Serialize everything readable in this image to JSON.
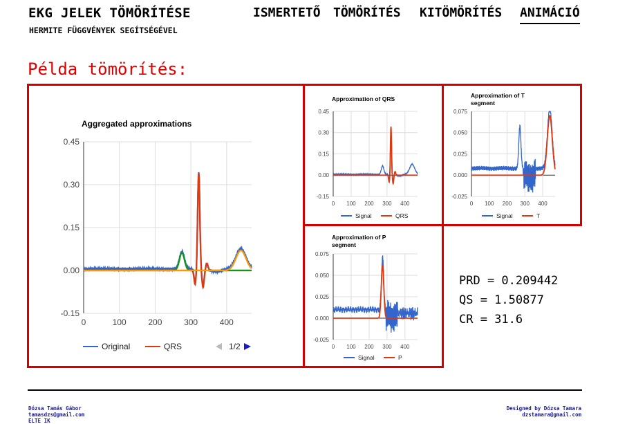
{
  "header": {
    "title": "EKG JELEK TÖMÖRÍTÉSE",
    "subtitle": "HERMITE FÜGGVÉNYEK SEGÍTSÉGÉVEL",
    "nav": [
      {
        "label": "ISMERTETŐ",
        "active": false
      },
      {
        "label": "TÖMÖRÍTÉS",
        "active": false
      },
      {
        "label": "KITÖMÖRÍTÉS",
        "active": false
      },
      {
        "label": "ANIMÁCIÓ",
        "active": true
      }
    ]
  },
  "section_title": "Példa tömörítés:",
  "stats": {
    "prd": "PRD = 0.209442",
    "qs": "QS = 1.50877",
    "cr": "CR = 31.6"
  },
  "footer": {
    "left_name": "Dózsa Tamás Gábor",
    "left_email": "tamasdzs@gmail.com",
    "left_org": "ELTE IK",
    "right_credit": "Designed by Dózsa Tamara",
    "right_email": "dzstamara@gmail.com"
  },
  "colors": {
    "accent_red": "#d40000",
    "signal_blue": "#3366cc",
    "approx_red": "#dc3912",
    "p_green": "#109618",
    "t_orange": "#ff9900"
  },
  "chart_data": [
    {
      "id": "aggregated",
      "type": "line",
      "title": "Aggregated approximations",
      "xlim": [
        0,
        470
      ],
      "ylim": [
        -0.15,
        0.45
      ],
      "x_ticks": [
        "0",
        "100",
        "200",
        "300",
        "400"
      ],
      "y_ticks": [
        "0.45",
        "0.30",
        "0.15",
        "0.00",
        "-0.15"
      ],
      "legend": [
        "Original",
        "QRS"
      ],
      "pager": "1/2",
      "series": [
        {
          "name": "Original",
          "color": "#3366cc"
        },
        {
          "name": "QRS",
          "color": "#dc3912"
        },
        {
          "color": "#109618"
        },
        {
          "color": "#ff9900"
        }
      ]
    },
    {
      "id": "qrs",
      "type": "line",
      "title": "Approximation of QRS",
      "xlim": [
        0,
        470
      ],
      "ylim": [
        -0.15,
        0.45
      ],
      "x_ticks": [
        "0",
        "100",
        "200",
        "300",
        "400"
      ],
      "y_ticks": [
        "0.45",
        "0.30",
        "0.15",
        "0.00",
        "-0.15"
      ],
      "legend": [
        "Signal",
        "QRS"
      ]
    },
    {
      "id": "t",
      "type": "line",
      "title": [
        "Approximation of T",
        "segment"
      ],
      "xlim": [
        0,
        470
      ],
      "ylim": [
        -0.025,
        0.075
      ],
      "x_ticks": [
        "0",
        "100",
        "200",
        "300",
        "400"
      ],
      "y_ticks": [
        "0.075",
        "0.050",
        "0.025",
        "0.000",
        "-0.025"
      ],
      "legend": [
        "Signal",
        "T"
      ]
    },
    {
      "id": "p",
      "type": "line",
      "title": [
        "Approximation of P",
        "segment"
      ],
      "xlim": [
        0,
        470
      ],
      "ylim": [
        -0.025,
        0.075
      ],
      "x_ticks": [
        "0",
        "100",
        "200",
        "300",
        "400"
      ],
      "y_ticks": [
        "0.075",
        "0.050",
        "0.025",
        "0.000",
        "-0.025"
      ],
      "legend": [
        "Signal",
        "P"
      ]
    }
  ]
}
